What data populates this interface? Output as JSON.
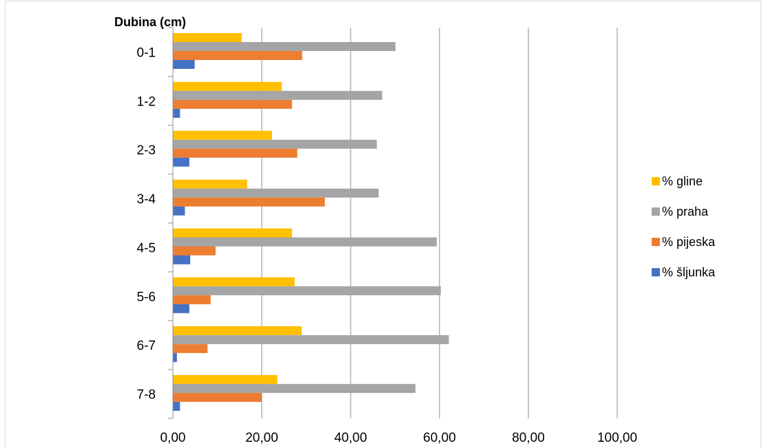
{
  "chart_data": {
    "type": "bar",
    "orientation": "horizontal",
    "ylabel": "Dubina (cm)",
    "xlabel": "",
    "title": "",
    "categories": [
      "0-1",
      "1-2",
      "2-3",
      "3-4",
      "4-5",
      "5-6",
      "6-7",
      "7-8"
    ],
    "xlim": [
      0,
      100
    ],
    "x_ticks": [
      "0,00",
      "20,00",
      "40,00",
      "60,00",
      "80,00",
      "100,00"
    ],
    "grid": "vertical",
    "legend_position": "right",
    "series": [
      {
        "name": "% gline",
        "color": "#ffc000",
        "values": [
          15.5,
          24.5,
          22.3,
          16.7,
          26.8,
          27.4,
          29.0,
          23.5
        ]
      },
      {
        "name": "% praha",
        "color": "#a5a5a5",
        "values": [
          50.1,
          47.1,
          45.9,
          46.3,
          59.4,
          60.3,
          62.1,
          54.6
        ]
      },
      {
        "name": "% pijeska",
        "color": "#ed7d31",
        "values": [
          29.1,
          26.8,
          28.0,
          34.2,
          9.6,
          8.5,
          7.8,
          20.0
        ]
      },
      {
        "name": "% šljunka",
        "color": "#4472c4",
        "values": [
          4.9,
          1.6,
          3.7,
          2.7,
          3.9,
          3.7,
          0.9,
          1.6
        ]
      }
    ]
  }
}
